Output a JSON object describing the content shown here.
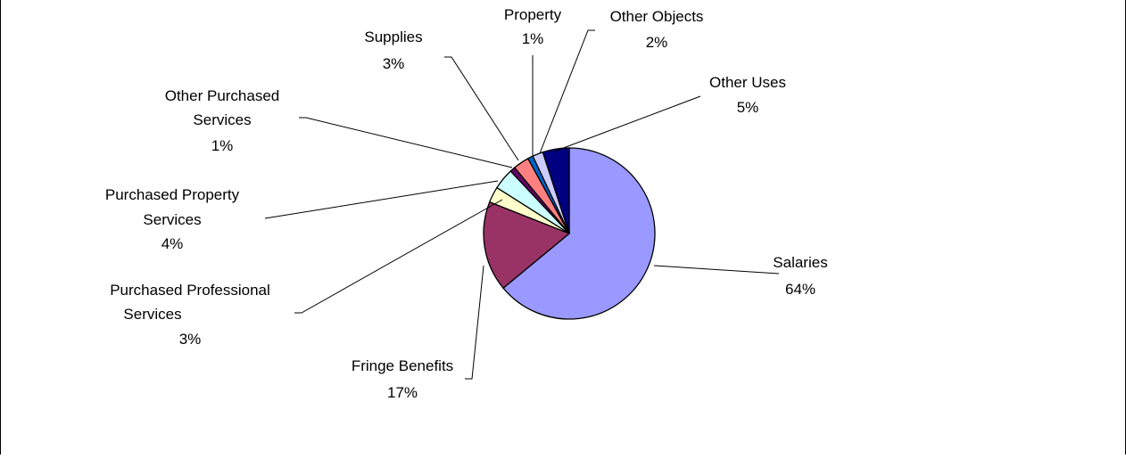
{
  "chart_data": {
    "type": "pie",
    "title": "",
    "start_angle_deg": 0,
    "direction": "clockwise",
    "slices": [
      {
        "label": "Salaries",
        "value": 64,
        "value_label": "64%",
        "color": "#9999FF"
      },
      {
        "label": "Fringe Benefits",
        "value": 17,
        "value_label": "17%",
        "color": "#993366"
      },
      {
        "label": "Purchased Professional Services",
        "value": 3,
        "value_label": "3%",
        "color": "#FFFFCC"
      },
      {
        "label": "Purchased Property Services",
        "value": 4,
        "value_label": "4%",
        "color": "#CCFFFF"
      },
      {
        "label": "Other Purchased Services",
        "value": 1,
        "value_label": "1%",
        "color": "#660066"
      },
      {
        "label": "Supplies",
        "value": 3,
        "value_label": "3%",
        "color": "#FF8080"
      },
      {
        "label": "Property",
        "value": 1,
        "value_label": "1%",
        "color": "#0066CC"
      },
      {
        "label": "Other Objects",
        "value": 2,
        "value_label": "2%",
        "color": "#CCCCFF"
      },
      {
        "label": "Other Uses",
        "value": 5,
        "value_label": "5%",
        "color": "#000080"
      }
    ],
    "legend": "none",
    "data_labels": "outside with leader lines"
  }
}
